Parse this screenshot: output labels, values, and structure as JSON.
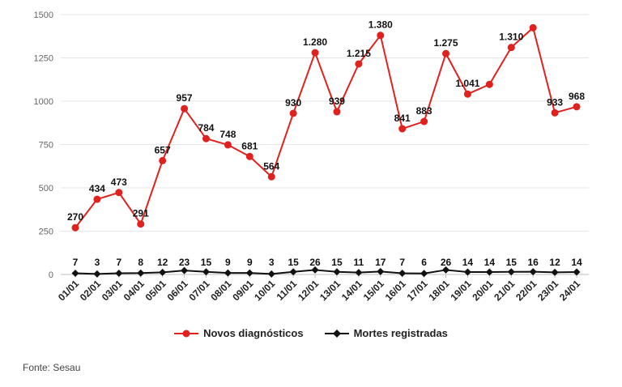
{
  "chart_data": {
    "type": "line",
    "categories": [
      "01/01",
      "02/01",
      "03/01",
      "04/01",
      "05/01",
      "06/01",
      "07/01",
      "08/01",
      "09/01",
      "10/01",
      "11/01",
      "12/01",
      "13/01",
      "14/01",
      "15/01",
      "16/01",
      "17/01",
      "18/01",
      "19/01",
      "20/01",
      "21/01",
      "22/01",
      "23/01",
      "24/01"
    ],
    "series": [
      {
        "name": "Novos diagnósticos",
        "color": "#e0211d",
        "marker": "circle",
        "values": [
          270,
          434,
          473,
          291,
          657,
          957,
          784,
          748,
          681,
          564,
          930,
          1280,
          939,
          1215,
          1380,
          841,
          883,
          1275,
          1041,
          1097,
          1310,
          1424,
          933,
          968
        ],
        "labels": [
          "270",
          "434",
          "473",
          "291",
          "657",
          "957",
          "784",
          "748",
          "681",
          "564",
          "930",
          "1.280",
          "939",
          "1.215",
          "1.380",
          "841",
          "883",
          "1.275",
          "1.041",
          "",
          "1.310",
          "",
          "933",
          "968"
        ]
      },
      {
        "name": "Mortes registradas",
        "color": "#111111",
        "marker": "diamond",
        "values": [
          7,
          3,
          7,
          8,
          12,
          23,
          15,
          9,
          9,
          3,
          15,
          26,
          15,
          11,
          17,
          7,
          6,
          26,
          14,
          14,
          15,
          16,
          12,
          14
        ],
        "labels": [
          "7",
          "3",
          "7",
          "8",
          "12",
          "23",
          "15",
          "9",
          "9",
          "3",
          "15",
          "26",
          "15",
          "11",
          "17",
          "7",
          "6",
          "26",
          "14",
          "14",
          "15",
          "16",
          "12",
          "14"
        ]
      }
    ],
    "yticks": [
      "0",
      "250",
      "500",
      "750",
      "1000",
      "1250",
      "1500"
    ],
    "ylim": [
      0,
      1500
    ],
    "grid": true,
    "legend_position": "bottom-center",
    "title": "",
    "xlabel": "",
    "ylabel": ""
  },
  "source": "Fonte: Sesau"
}
